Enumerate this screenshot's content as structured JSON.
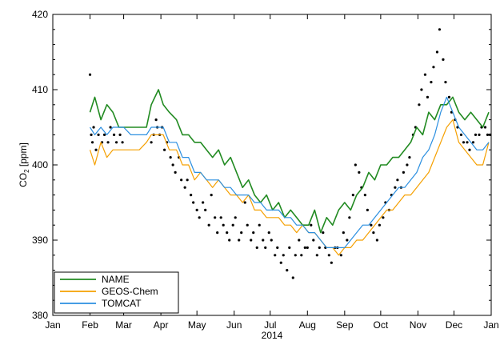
{
  "chart_data": {
    "type": "line",
    "title": "",
    "xlabel": "2014",
    "ylabel_main": "CO",
    "ylabel_sub": "2",
    "ylabel_unit": " [ppm]",
    "xlim": [
      0,
      365
    ],
    "ylim": [
      380,
      420
    ],
    "x_ticks": [
      {
        "label": "Jan",
        "day": 0
      },
      {
        "label": "Feb",
        "day": 31
      },
      {
        "label": "Mar",
        "day": 59
      },
      {
        "label": "Apr",
        "day": 90
      },
      {
        "label": "May",
        "day": 120
      },
      {
        "label": "Jun",
        "day": 151
      },
      {
        "label": "Jul",
        "day": 181
      },
      {
        "label": "Aug",
        "day": 212
      },
      {
        "label": "Sep",
        "day": 243
      },
      {
        "label": "Oct",
        "day": 273
      },
      {
        "label": "Nov",
        "day": 304
      },
      {
        "label": "Dec",
        "day": 334
      },
      {
        "label": "Jan",
        "day": 365
      }
    ],
    "y_ticks": [
      380,
      390,
      400,
      410,
      420
    ],
    "legend_position": "bottom-left",
    "series": [
      {
        "name": "NAME",
        "color": "#228B22",
        "x": [
          31,
          35,
          40,
          45,
          50,
          55,
          59,
          65,
          72,
          78,
          82,
          85,
          88,
          92,
          97,
          103,
          108,
          113,
          118,
          123,
          128,
          133,
          138,
          143,
          148,
          153,
          158,
          163,
          168,
          173,
          178,
          183,
          188,
          193,
          198,
          203,
          208,
          213,
          218,
          223,
          228,
          233,
          238,
          243,
          248,
          253,
          258,
          263,
          268,
          273,
          278,
          283,
          288,
          293,
          298,
          303,
          308,
          313,
          318,
          323,
          328,
          333,
          338,
          343,
          348,
          353,
          358,
          363
        ],
        "y": [
          407,
          409,
          406,
          408,
          407,
          405,
          405,
          405,
          405,
          405,
          408,
          409,
          410,
          408,
          407,
          406,
          404,
          404,
          403,
          403,
          402,
          401,
          402,
          400,
          401,
          399,
          397,
          398,
          396,
          395,
          396,
          394,
          395,
          393,
          394,
          393,
          392,
          392,
          394,
          391,
          393,
          392,
          394,
          395,
          394,
          396,
          397,
          399,
          398,
          400,
          400,
          401,
          401,
          402,
          403,
          405,
          404,
          407,
          406,
          408,
          408,
          409,
          407,
          406,
          407,
          406,
          405,
          407
        ]
      },
      {
        "name": "GEOS-Chem",
        "color": "#F5A000",
        "x": [
          31,
          35,
          40,
          45,
          50,
          55,
          59,
          65,
          72,
          78,
          82,
          88,
          92,
          97,
          103,
          108,
          113,
          118,
          123,
          128,
          133,
          138,
          143,
          148,
          153,
          158,
          163,
          168,
          173,
          178,
          183,
          188,
          193,
          198,
          203,
          208,
          213,
          218,
          223,
          228,
          233,
          238,
          243,
          248,
          253,
          258,
          263,
          268,
          273,
          278,
          283,
          288,
          293,
          298,
          303,
          308,
          313,
          318,
          323,
          328,
          333,
          338,
          343,
          348,
          353,
          358,
          363
        ],
        "y": [
          402,
          400,
          403,
          401,
          402,
          402,
          402,
          402,
          402,
          403,
          404,
          404,
          404,
          402,
          402,
          400,
          400,
          398,
          399,
          398,
          397,
          398,
          397,
          396,
          396,
          395,
          396,
          394,
          394,
          393,
          393,
          393,
          392,
          392,
          391,
          392,
          391,
          391,
          390,
          389,
          389,
          388,
          389,
          389,
          390,
          390,
          391,
          392,
          393,
          394,
          394,
          395,
          396,
          396,
          397,
          398,
          399,
          401,
          403,
          405,
          406,
          403,
          402,
          401,
          400,
          400,
          403
        ]
      },
      {
        "name": "TOMCAT",
        "color": "#2B8FE0",
        "x": [
          31,
          35,
          40,
          45,
          50,
          55,
          59,
          65,
          72,
          78,
          82,
          88,
          92,
          97,
          103,
          108,
          113,
          118,
          123,
          128,
          133,
          138,
          143,
          148,
          153,
          158,
          163,
          168,
          173,
          178,
          183,
          188,
          193,
          198,
          203,
          208,
          213,
          218,
          223,
          228,
          233,
          238,
          243,
          248,
          253,
          258,
          263,
          268,
          273,
          278,
          283,
          288,
          293,
          298,
          303,
          308,
          313,
          318,
          323,
          328,
          333,
          338,
          343,
          348,
          353,
          358,
          363
        ],
        "y": [
          405,
          404,
          405,
          404,
          405,
          405,
          405,
          404,
          404,
          404,
          405,
          405,
          405,
          403,
          403,
          401,
          401,
          399,
          399,
          398,
          398,
          398,
          397,
          397,
          396,
          396,
          396,
          395,
          395,
          394,
          394,
          394,
          393,
          393,
          392,
          392,
          391,
          391,
          390,
          389,
          389,
          389,
          389,
          390,
          391,
          392,
          392,
          393,
          394,
          395,
          396,
          397,
          397,
          398,
          399,
          401,
          402,
          404,
          407,
          409,
          407,
          405,
          404,
          403,
          402,
          402,
          403
        ]
      }
    ],
    "observations": {
      "name": "",
      "color": "#000000",
      "x": [
        31,
        32,
        33,
        34,
        36,
        38,
        41,
        43,
        46,
        48,
        51,
        53,
        56,
        58,
        82,
        84,
        86,
        87,
        89,
        91,
        93,
        95,
        98,
        100,
        102,
        105,
        107,
        110,
        112,
        115,
        117,
        120,
        122,
        125,
        127,
        130,
        132,
        135,
        137,
        140,
        142,
        145,
        147,
        150,
        152,
        155,
        157,
        160,
        162,
        165,
        167,
        170,
        172,
        175,
        177,
        180,
        182,
        185,
        187,
        190,
        192,
        195,
        197,
        200,
        202,
        205,
        207,
        210,
        212,
        215,
        217,
        220,
        222,
        225,
        227,
        230,
        232,
        235,
        237,
        240,
        242,
        245,
        247,
        250,
        252,
        255,
        257,
        260,
        262,
        265,
        267,
        270,
        272,
        275,
        277,
        280,
        282,
        285,
        287,
        290,
        292,
        295,
        297,
        300,
        302,
        305,
        307,
        310,
        312,
        315,
        317,
        320,
        322,
        325,
        327,
        330,
        332,
        335,
        337,
        340,
        342,
        345,
        347,
        350,
        352,
        355,
        357,
        360,
        362,
        364
      ],
      "y": [
        412,
        404,
        403,
        405,
        402,
        404,
        403,
        404,
        403,
        405,
        404,
        403,
        404,
        403,
        403,
        404,
        406,
        405,
        404,
        405,
        402,
        403,
        401,
        400,
        399,
        401,
        398,
        397,
        398,
        396,
        395,
        394,
        393,
        395,
        394,
        392,
        396,
        393,
        391,
        393,
        392,
        391,
        390,
        392,
        393,
        390,
        391,
        395,
        392,
        390,
        391,
        389,
        392,
        390,
        389,
        391,
        390,
        388,
        389,
        387,
        388,
        386,
        389,
        385,
        388,
        390,
        388,
        389,
        389,
        392,
        390,
        388,
        389,
        391,
        389,
        388,
        387,
        389,
        389,
        388,
        391,
        390,
        393,
        396,
        400,
        399,
        397,
        396,
        394,
        392,
        391,
        390,
        392,
        393,
        395,
        394,
        396,
        397,
        398,
        397,
        399,
        400,
        401,
        404,
        405,
        408,
        410,
        412,
        409,
        411,
        413,
        415,
        418,
        414,
        411,
        409,
        407,
        406,
        405,
        404,
        403,
        403,
        402,
        403,
        404,
        404,
        405,
        405,
        404,
        404
      ]
    }
  }
}
